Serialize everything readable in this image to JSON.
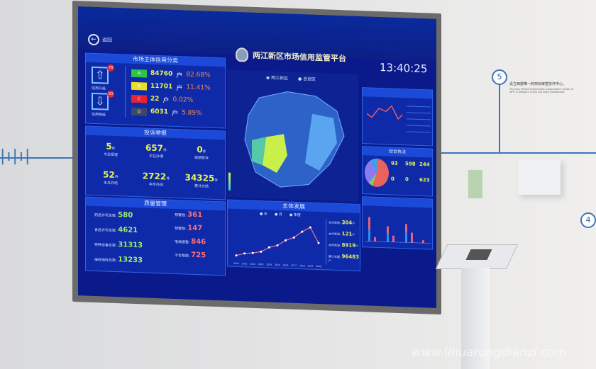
{
  "header": {
    "back_label": "返回",
    "title": "两江新区市场信用监管平台",
    "time": "13:40:25",
    "filters": [
      "两江新区",
      "自贸区"
    ]
  },
  "credit": {
    "title": "市场主体信用分类",
    "upgrade": {
      "label": "信用升级",
      "count": "78"
    },
    "downgrade": {
      "label": "信用降级",
      "count": "63"
    },
    "grades": [
      {
        "grade": "A",
        "count": "84760",
        "unit": "户",
        "pct": "82.68%",
        "color": "#2fc24a"
      },
      {
        "grade": "B",
        "count": "11701",
        "unit": "户",
        "pct": "11.41%",
        "color": "#e8e020"
      },
      {
        "grade": "C",
        "count": "22",
        "unit": "户",
        "pct": "0.02%",
        "color": "#e52431"
      },
      {
        "grade": "D",
        "count": "6031",
        "unit": "户",
        "pct": "5.89%",
        "color": "#3d4a66"
      }
    ]
  },
  "complaints": {
    "title": "投诉举报",
    "unit": "件",
    "cells": [
      {
        "value": "5",
        "label": "今日受理"
      },
      {
        "value": "657",
        "label": "正在办理"
      },
      {
        "value": "0",
        "label": "逾期投诉"
      },
      {
        "value": "52",
        "label": "本月办结"
      },
      {
        "value": "2722",
        "label": "本年办结"
      },
      {
        "value": "34325",
        "label": "累计办结"
      }
    ]
  },
  "quality": {
    "title": "质量管理",
    "left": [
      {
        "label": "药品许可总数:",
        "value": "580"
      },
      {
        "label": "食品许可总数:",
        "value": "4621"
      },
      {
        "label": "特种设备总数:",
        "value": "31313"
      },
      {
        "label": "抽样抽检总数:",
        "value": "13233"
      }
    ],
    "right": [
      {
        "label": "预警数:",
        "value": "361"
      },
      {
        "label": "预警数:",
        "value": "147"
      },
      {
        "label": "电梯报警:",
        "value": "846"
      },
      {
        "label": "不合格数:",
        "value": "725"
      }
    ]
  },
  "development": {
    "title": "主体发展",
    "options": [
      "年",
      "月",
      "季度"
    ],
    "chart": {
      "type": "line",
      "x": [
        "2010",
        "2011",
        "2012",
        "2013",
        "2014",
        "2015",
        "2016",
        "2017",
        "2018",
        "2019",
        "2020"
      ],
      "y": [
        2000,
        3500,
        4000,
        5000,
        8000,
        9500,
        13000,
        15000,
        19000,
        22000,
        12000
      ]
    },
    "stats": [
      {
        "label": "本日新增:",
        "value": "304",
        "unit": "户"
      },
      {
        "label": "本月新增:",
        "value": "121",
        "unit": "户"
      },
      {
        "label": "本年新增:",
        "value": "8919",
        "unit": "户"
      },
      {
        "label": "累计总量:",
        "value": "96483",
        "unit": "户"
      }
    ]
  },
  "enforcement": {
    "title": "综合执法",
    "cells": [
      {
        "value": "93"
      },
      {
        "value": "598"
      },
      {
        "value": "244"
      },
      {
        "value": "0"
      },
      {
        "value": "0"
      },
      {
        "value": "623"
      }
    ]
  },
  "wall": {
    "step5": "5",
    "step4": "4",
    "caption_cn": "设立西部唯一的商标审查协作中心。",
    "caption_en": "The only Patent Examination Cooperation Center of SIPO in Western China has been established."
  },
  "watermark": "www.lihuarongdianzi.com"
}
